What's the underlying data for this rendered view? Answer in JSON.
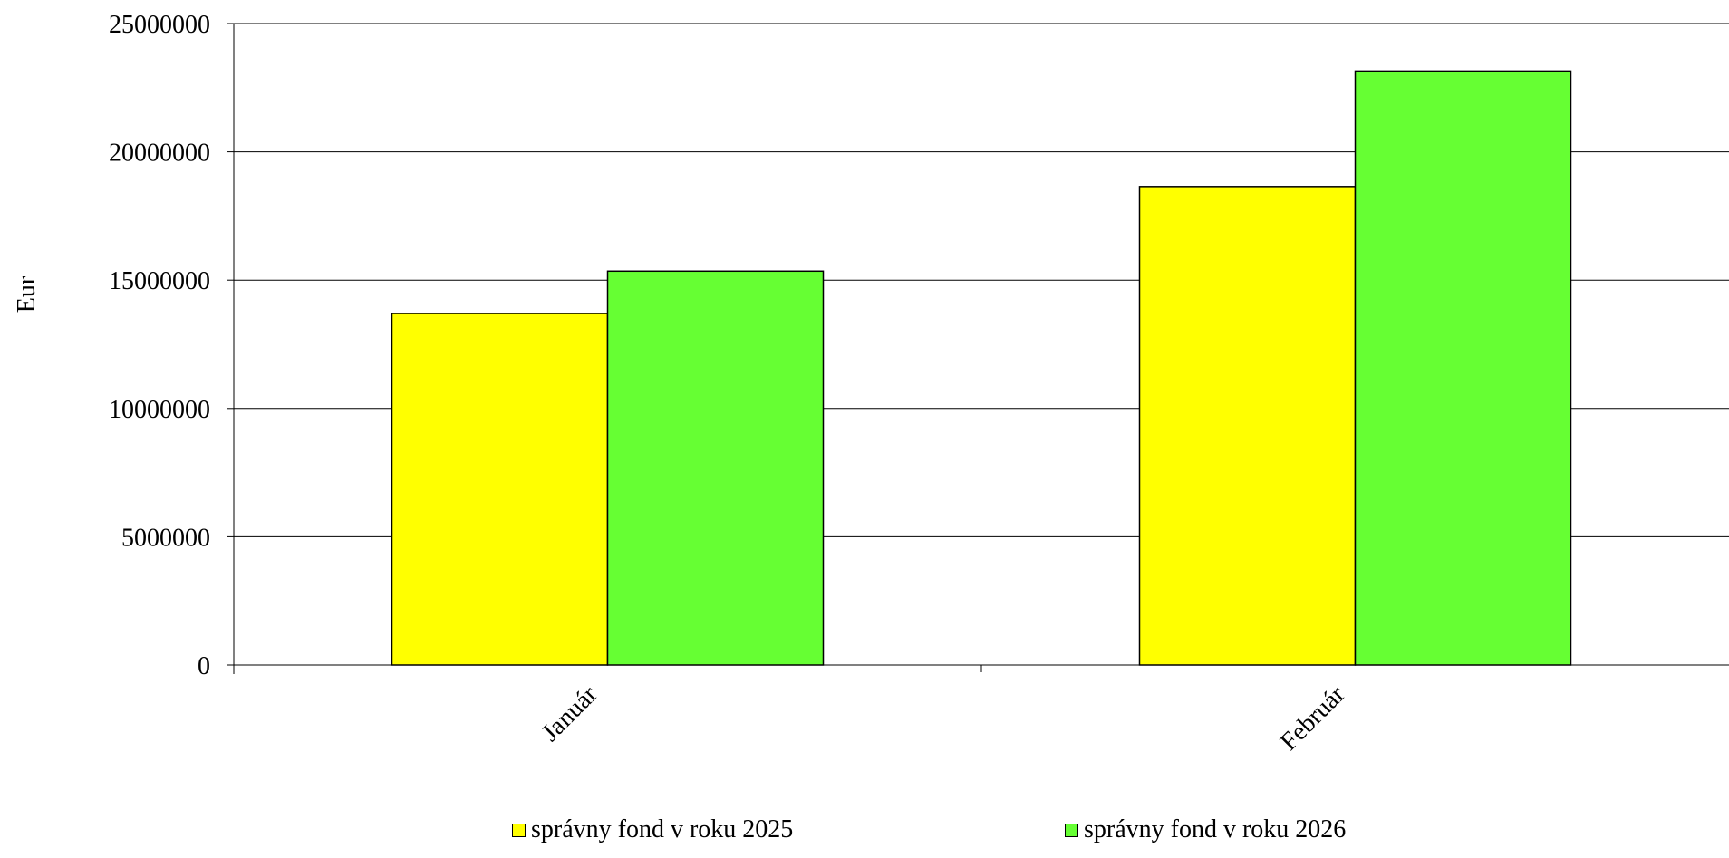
{
  "chart_data": {
    "type": "bar",
    "categories": [
      "Január",
      "Február"
    ],
    "series": [
      {
        "name": "správny fond v roku 2025",
        "color": "#ffff00",
        "values": [
          13700000,
          18650000
        ]
      },
      {
        "name": "správny fond v roku 2026",
        "color": "#66ff33",
        "values": [
          15350000,
          23150000
        ]
      }
    ],
    "ylabel": "Eur",
    "xlabel": "",
    "ylim": [
      0,
      25000000
    ],
    "yticks": [
      "0",
      "5000000",
      "10000000",
      "15000000",
      "20000000",
      "25000000"
    ],
    "grid": true,
    "legend_position": "bottom"
  }
}
